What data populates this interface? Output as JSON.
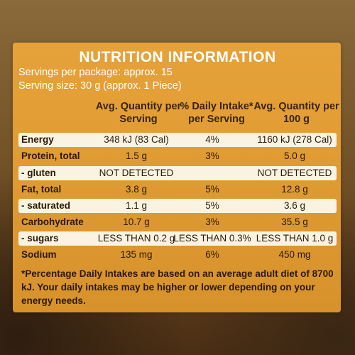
{
  "title": "NUTRITION INFORMATION",
  "servings_per_package": "Servings per package: approx. 15",
  "serving_size": "Serving size: 30 g (approx. 1 Piece)",
  "columns": {
    "per_serving": "Avg. Quantity per Serving",
    "daily_intake": "% Daily Intake* per Serving",
    "per_100g": "Avg. Quantity per 100 g"
  },
  "rows": [
    {
      "label": "Energy",
      "per_serving": "348 kJ (83 Cal)",
      "daily_intake": "4%",
      "per_100g": "1160 kJ (278 Cal)"
    },
    {
      "label": "Protein, total",
      "per_serving": "1.5 g",
      "daily_intake": "3%",
      "per_100g": "5.0 g"
    },
    {
      "label": "- gluten",
      "per_serving": "NOT DETECTED",
      "daily_intake": "",
      "per_100g": "NOT DETECTED"
    },
    {
      "label": "Fat, total",
      "per_serving": "3.8 g",
      "daily_intake": "5%",
      "per_100g": "12.8 g"
    },
    {
      "label": "- saturated",
      "per_serving": "1.1 g",
      "daily_intake": "5%",
      "per_100g": "3.6 g"
    },
    {
      "label": "Carbohydrate",
      "per_serving": "10.7 g",
      "daily_intake": "3%",
      "per_100g": "35.5 g"
    },
    {
      "label": "- sugars",
      "per_serving": "LESS THAN 0.2 g",
      "daily_intake": "LESS THAN 0.3%",
      "per_100g": "LESS THAN 1.0 g"
    },
    {
      "label": "Sodium",
      "per_serving": "135 mg",
      "daily_intake": "6%",
      "per_100g": "450 mg"
    }
  ],
  "footnote": "*Percentage Daily Intakes are based on an average adult diet of 8700 kJ. Your daily intakes may be higher or lower depending on your energy needs.",
  "colors": {
    "panel": "#e09a32",
    "row_highlight": "#fbf3e1",
    "text_dark": "#2a1a06"
  }
}
